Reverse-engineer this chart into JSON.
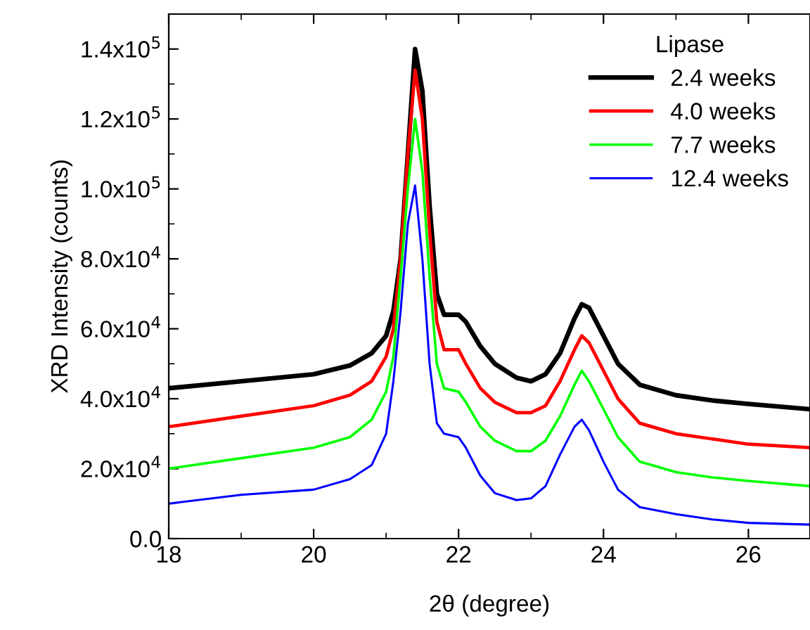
{
  "chart_data": {
    "type": "line",
    "xlabel": "2θ (degree)",
    "ylabel": "XRD Intensity (counts)",
    "legend_title": "Lipase",
    "x": [
      18,
      19,
      20,
      20.5,
      20.8,
      21.0,
      21.1,
      21.2,
      21.3,
      21.4,
      21.5,
      21.6,
      21.7,
      21.8,
      22.0,
      22.1,
      22.3,
      22.5,
      22.8,
      23.0,
      23.2,
      23.4,
      23.6,
      23.7,
      23.8,
      24.0,
      24.2,
      24.5,
      25,
      25.5,
      26,
      26.85
    ],
    "series": [
      {
        "name": "2.4 weeks",
        "color": "#000000",
        "values": [
          43000,
          45000,
          47000,
          49500,
          53000,
          58000,
          65000,
          80000,
          110000,
          140000,
          128000,
          95000,
          70000,
          64000,
          64000,
          62000,
          55000,
          50000,
          46000,
          45000,
          47000,
          53000,
          63000,
          67000,
          66000,
          58000,
          50000,
          44000,
          41000,
          39500,
          38500,
          37000
        ]
      },
      {
        "name": "4.0 weeks",
        "color": "#ff0000",
        "values": [
          32000,
          35000,
          38000,
          41000,
          45000,
          52000,
          60000,
          80000,
          110000,
          134000,
          120000,
          88000,
          62000,
          54000,
          54000,
          50000,
          43000,
          39000,
          36000,
          36000,
          38000,
          45000,
          54000,
          58000,
          56000,
          48000,
          40000,
          33000,
          30000,
          28500,
          27000,
          26000
        ]
      },
      {
        "name": "7.7 weeks",
        "color": "#00ff00",
        "values": [
          20000,
          23000,
          26000,
          29000,
          34000,
          42000,
          52000,
          75000,
          100000,
          120000,
          105000,
          75000,
          50000,
          43000,
          42000,
          39000,
          32000,
          28000,
          25000,
          25000,
          28000,
          35000,
          44000,
          48000,
          45000,
          37000,
          29000,
          22000,
          19000,
          17500,
          16500,
          15000
        ]
      },
      {
        "name": "12.4 weeks",
        "color": "#0000ff",
        "values": [
          10000,
          12500,
          14000,
          17000,
          21000,
          30000,
          45000,
          65000,
          90000,
          101000,
          80000,
          50000,
          33000,
          30000,
          29000,
          26000,
          18000,
          13000,
          11000,
          11500,
          15000,
          24000,
          32000,
          34000,
          31000,
          22000,
          14000,
          9000,
          7000,
          5500,
          4500,
          4000
        ]
      }
    ],
    "xlim": [
      18,
      26.85
    ],
    "xticks": [
      18,
      20,
      22,
      24,
      26
    ],
    "ylim": [
      0,
      150000
    ],
    "yticks": [
      {
        "value": 0,
        "label": "0.0"
      },
      {
        "value": 20000,
        "label": "2.0x10$^{4}$"
      },
      {
        "value": 40000,
        "label": "4.0x10$^{4}$"
      },
      {
        "value": 60000,
        "label": "6.0x10$^{4}$"
      },
      {
        "value": 80000,
        "label": "8.0x10$^{4}$"
      },
      {
        "value": 100000,
        "label": "1.0x10$^{5}$"
      },
      {
        "value": 120000,
        "label": "1.2x10$^{5}$"
      },
      {
        "value": 140000,
        "label": "1.4x10$^{5}$"
      }
    ],
    "grid": false,
    "legend": "top right",
    "marker": "none",
    "line_style": "solid"
  }
}
